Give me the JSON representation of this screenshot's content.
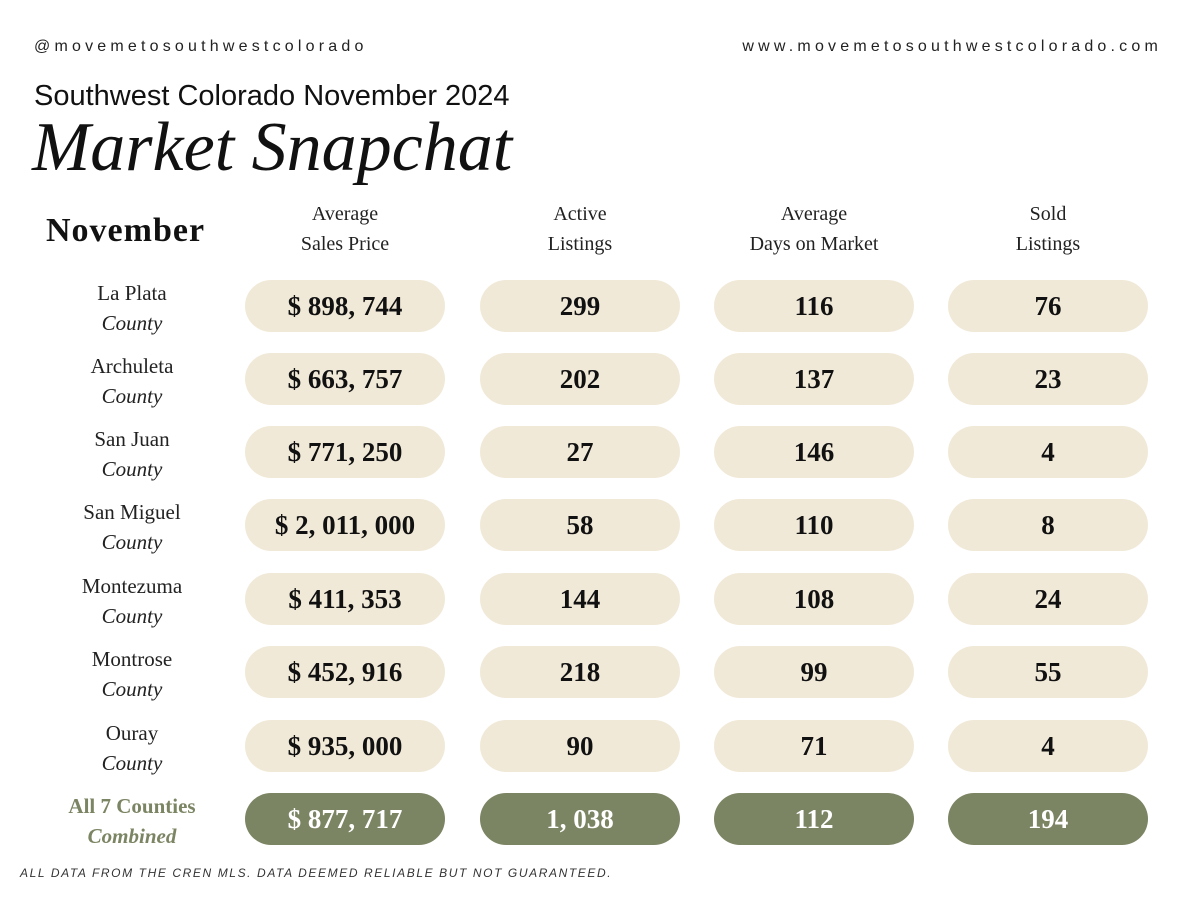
{
  "header": {
    "handle": "@movemetosouthwestcolorado",
    "website": "www.movemetosouthwestcolorado.com",
    "subtitle": "Southwest Colorado November 2024",
    "title": "Market Snapchat"
  },
  "table": {
    "month_label": "November",
    "columns": [
      {
        "line1": "Average",
        "line2": "Sales Price"
      },
      {
        "line1": "Active",
        "line2": "Listings"
      },
      {
        "line1": "Average",
        "line2": "Days on Market"
      },
      {
        "line1": "Sold",
        "line2": "Listings"
      }
    ],
    "rows": [
      {
        "name": "La Plata",
        "sub": "County",
        "avg_price": "$ 898, 744",
        "active": "299",
        "days": "116",
        "sold": "76"
      },
      {
        "name": "Archuleta",
        "sub": "County",
        "avg_price": "$ 663, 757",
        "active": "202",
        "days": "137",
        "sold": "23"
      },
      {
        "name": "San Juan",
        "sub": "County",
        "avg_price": "$ 771, 250",
        "active": "27",
        "days": "146",
        "sold": "4"
      },
      {
        "name": "San Miguel",
        "sub": "County",
        "avg_price": "$ 2, 011, 000",
        "active": "58",
        "days": "110",
        "sold": "8"
      },
      {
        "name": "Montezuma",
        "sub": "County",
        "avg_price": "$ 411, 353",
        "active": "144",
        "days": "108",
        "sold": "24"
      },
      {
        "name": "Montrose",
        "sub": "County",
        "avg_price": "$ 452, 916",
        "active": "218",
        "days": "99",
        "sold": "55"
      },
      {
        "name": "Ouray",
        "sub": "County",
        "avg_price": "$ 935, 000",
        "active": "90",
        "days": "71",
        "sold": "4"
      }
    ],
    "total": {
      "name": "All 7 Counties",
      "sub": "Combined",
      "avg_price": "$ 877, 717",
      "active": "1, 038",
      "days": "112",
      "sold": "194"
    }
  },
  "footer": {
    "disclaimer": "ALL DATA FROM THE CREN MLS. DATA DEEMED RELIABLE BUT NOT GUARANTEED."
  },
  "colors": {
    "pill_bg": "#f1e9d8",
    "total_bg": "#7b8563"
  }
}
